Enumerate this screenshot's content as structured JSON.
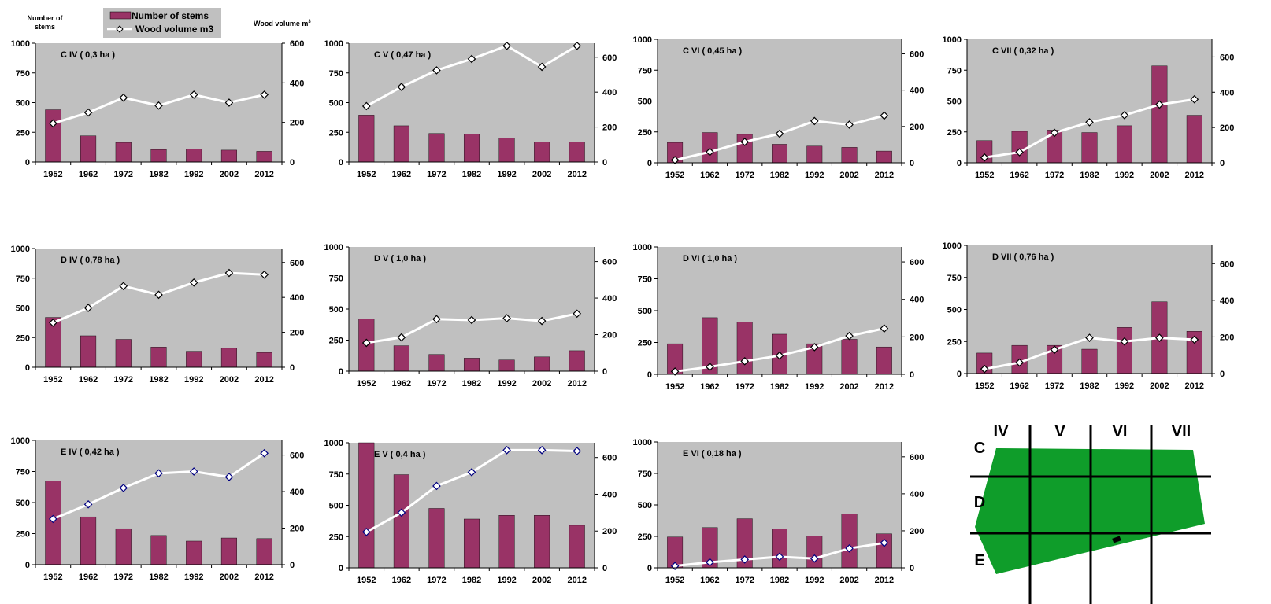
{
  "legend": {
    "left_axis_label_line1": "Number of",
    "left_axis_label_line2": "stems",
    "right_axis_label": "Wood volume m",
    "right_axis_label_sup": "3",
    "bar_label": "Number of stems",
    "line_label": "Wood volume m3"
  },
  "colors": {
    "bar": "#993366",
    "plot_bg": "#c0c0c0",
    "line": "#ffffff",
    "marker_fill": "#ffffff",
    "marker_stroke_c_d": "#000000",
    "marker_stroke_e": "#000080",
    "map_green": "#0f9d2a"
  },
  "chart_data": [
    {
      "type": "bar",
      "title": "C IV ( 0,3  ha )",
      "categories": [
        "1952",
        "1962",
        "1972",
        "1982",
        "1992",
        "2002",
        "2012"
      ],
      "series": [
        {
          "name": "Number of stems",
          "axis": "left",
          "values": [
            440,
            220,
            165,
            105,
            110,
            100,
            90
          ]
        },
        {
          "name": "Wood volume m3",
          "axis": "right",
          "type": "line",
          "values": [
            195,
            250,
            325,
            285,
            340,
            300,
            340
          ]
        }
      ],
      "ylim": [
        0,
        1000
      ],
      "y2lim": [
        0,
        600
      ],
      "yticks": [
        "0",
        "250",
        "500",
        "750",
        "1000"
      ],
      "y2ticks": [
        "0",
        "200",
        "400",
        "600"
      ]
    },
    {
      "type": "bar",
      "title": "C V ( 0,47 ha )",
      "categories": [
        "1952",
        "1962",
        "1972",
        "1982",
        "1992",
        "2002",
        "2012"
      ],
      "series": [
        {
          "name": "Number of stems",
          "axis": "left",
          "values": [
            395,
            305,
            240,
            235,
            200,
            170,
            170
          ]
        },
        {
          "name": "Wood volume m3",
          "axis": "right",
          "type": "line",
          "values": [
            320,
            430,
            525,
            590,
            665,
            545,
            665
          ]
        }
      ],
      "ylim": [
        0,
        1000
      ],
      "y2lim": [
        0,
        680
      ],
      "yticks": [
        "0",
        "250",
        "500",
        "750",
        "1000"
      ],
      "y2ticks": [
        "0",
        "200",
        "400",
        "600"
      ]
    },
    {
      "type": "bar",
      "title": "C VI ( 0,45 ha )",
      "categories": [
        "1952",
        "1962",
        "1972",
        "1982",
        "1992",
        "2002",
        "2012"
      ],
      "series": [
        {
          "name": "Number of stems",
          "axis": "left",
          "values": [
            165,
            245,
            230,
            150,
            135,
            125,
            95
          ]
        },
        {
          "name": "Wood volume m3",
          "axis": "right",
          "type": "line",
          "values": [
            15,
            60,
            115,
            160,
            230,
            210,
            260
          ]
        }
      ],
      "ylim": [
        0,
        1000
      ],
      "y2lim": [
        0,
        680
      ],
      "yticks": [
        "0",
        "250",
        "500",
        "750",
        "1000"
      ],
      "y2ticks": [
        "0",
        "200",
        "400",
        "600"
      ]
    },
    {
      "type": "bar",
      "title": "C VII ( 0,32 ha )",
      "categories": [
        "1952",
        "1962",
        "1972",
        "1982",
        "1992",
        "2002",
        "2012"
      ],
      "series": [
        {
          "name": "Number of stems",
          "axis": "left",
          "values": [
            180,
            255,
            265,
            245,
            300,
            785,
            385
          ]
        },
        {
          "name": "Wood volume m3",
          "axis": "right",
          "type": "line",
          "values": [
            30,
            60,
            170,
            230,
            270,
            330,
            360
          ]
        }
      ],
      "ylim": [
        0,
        1000
      ],
      "y2lim": [
        0,
        700
      ],
      "yticks": [
        "0",
        "250",
        "500",
        "750",
        "1000"
      ],
      "y2ticks": [
        "0",
        "200",
        "400",
        "600"
      ]
    },
    {
      "type": "bar",
      "title": "D IV ( 0,78 ha )",
      "categories": [
        "1952",
        "1962",
        "1972",
        "1982",
        "1992",
        "2002",
        "2012"
      ],
      "series": [
        {
          "name": "Number of stems",
          "axis": "left",
          "values": [
            420,
            265,
            235,
            170,
            135,
            160,
            125
          ]
        },
        {
          "name": "Wood volume m3",
          "axis": "right",
          "type": "line",
          "values": [
            255,
            340,
            465,
            415,
            485,
            540,
            530
          ]
        }
      ],
      "ylim": [
        0,
        1000
      ],
      "y2lim": [
        0,
        680
      ],
      "yticks": [
        "0",
        "250",
        "500",
        "750",
        "1000"
      ],
      "y2ticks": [
        "0",
        "200",
        "400",
        "600"
      ]
    },
    {
      "type": "bar",
      "title": "D V ( 1,0 ha )",
      "categories": [
        "1952",
        "1962",
        "1972",
        "1982",
        "1992",
        "2002",
        "2012"
      ],
      "series": [
        {
          "name": "Number of stems",
          "axis": "left",
          "values": [
            420,
            205,
            135,
            105,
            90,
            115,
            165
          ]
        },
        {
          "name": "Wood volume m3",
          "axis": "right",
          "type": "line",
          "values": [
            155,
            185,
            285,
            280,
            290,
            275,
            315
          ]
        }
      ],
      "ylim": [
        0,
        1000
      ],
      "y2lim": [
        0,
        680
      ],
      "yticks": [
        "0",
        "250",
        "500",
        "750",
        "1000"
      ],
      "y2ticks": [
        "0",
        "200",
        "400",
        "600"
      ]
    },
    {
      "type": "bar",
      "title": "D VI ( 1,0 ha )",
      "categories": [
        "1952",
        "1962",
        "1972",
        "1982",
        "1992",
        "2002",
        "2012"
      ],
      "series": [
        {
          "name": "Number of stems",
          "axis": "left",
          "values": [
            240,
            445,
            410,
            315,
            240,
            275,
            215
          ]
        },
        {
          "name": "Wood volume m3",
          "axis": "right",
          "type": "line",
          "values": [
            15,
            40,
            70,
            100,
            145,
            205,
            245
          ]
        }
      ],
      "ylim": [
        0,
        1000
      ],
      "y2lim": [
        0,
        680
      ],
      "yticks": [
        "0",
        "250",
        "500",
        "750",
        "1000"
      ],
      "y2ticks": [
        "0",
        "200",
        "400",
        "600"
      ]
    },
    {
      "type": "bar",
      "title": "D VII ( 0,76 ha )",
      "categories": [
        "1952",
        "1962",
        "1972",
        "1982",
        "1992",
        "2002",
        "2012"
      ],
      "series": [
        {
          "name": "Number of stems",
          "axis": "left",
          "values": [
            160,
            220,
            220,
            190,
            360,
            560,
            330
          ]
        },
        {
          "name": "Wood volume m3",
          "axis": "right",
          "type": "line",
          "values": [
            25,
            60,
            130,
            195,
            175,
            195,
            185
          ]
        }
      ],
      "ylim": [
        0,
        1000
      ],
      "y2lim": [
        0,
        700
      ],
      "yticks": [
        "0",
        "250",
        "500",
        "750",
        "1000"
      ],
      "y2ticks": [
        "0",
        "200",
        "400",
        "600"
      ]
    },
    {
      "type": "bar",
      "title": "E IV ( 0,42 ha )",
      "categories": [
        "1952",
        "1962",
        "1972",
        "1982",
        "1992",
        "2002",
        "2012"
      ],
      "series": [
        {
          "name": "Number of stems",
          "axis": "left",
          "values": [
            675,
            385,
            290,
            235,
            190,
            215,
            210
          ]
        },
        {
          "name": "Wood volume m3",
          "axis": "right",
          "type": "line",
          "values": [
            250,
            330,
            420,
            500,
            510,
            480,
            610
          ]
        }
      ],
      "ylim": [
        0,
        1000
      ],
      "y2lim": [
        0,
        680
      ],
      "yticks": [
        "0",
        "250",
        "500",
        "750",
        "1000"
      ],
      "y2ticks": [
        "0",
        "200",
        "400",
        "600"
      ]
    },
    {
      "type": "bar",
      "title": "E V ( 0,4 ha )",
      "categories": [
        "1952",
        "1962",
        "1972",
        "1982",
        "1992",
        "2002",
        "2012"
      ],
      "series": [
        {
          "name": "Number of stems",
          "axis": "left",
          "values": [
            1000,
            745,
            475,
            390,
            420,
            420,
            340
          ]
        },
        {
          "name": "Wood volume m3",
          "axis": "right",
          "type": "line",
          "values": [
            195,
            300,
            445,
            520,
            640,
            640,
            635
          ]
        }
      ],
      "ylim": [
        0,
        1000
      ],
      "y2lim": [
        0,
        680
      ],
      "yticks": [
        "0",
        "250",
        "500",
        "750",
        "1000"
      ],
      "y2ticks": [
        "0",
        "200",
        "400",
        "600"
      ]
    },
    {
      "type": "bar",
      "title": "E VI ( 0,18 ha )",
      "categories": [
        "1952",
        "1962",
        "1972",
        "1982",
        "1992",
        "2002",
        "2012"
      ],
      "series": [
        {
          "name": "Number of stems",
          "axis": "left",
          "values": [
            245,
            320,
            390,
            310,
            255,
            430,
            270
          ]
        },
        {
          "name": "Wood volume m3",
          "axis": "right",
          "type": "line",
          "values": [
            10,
            30,
            45,
            60,
            50,
            105,
            135
          ]
        }
      ],
      "ylim": [
        0,
        1000
      ],
      "y2lim": [
        0,
        680
      ],
      "yticks": [
        "0",
        "250",
        "500",
        "750",
        "1000"
      ],
      "y2ticks": [
        "0",
        "200",
        "400",
        "600"
      ]
    }
  ],
  "map": {
    "column_labels": [
      "IV",
      "V",
      "VI",
      "VII"
    ],
    "row_labels": [
      "C",
      "D",
      "E"
    ]
  }
}
